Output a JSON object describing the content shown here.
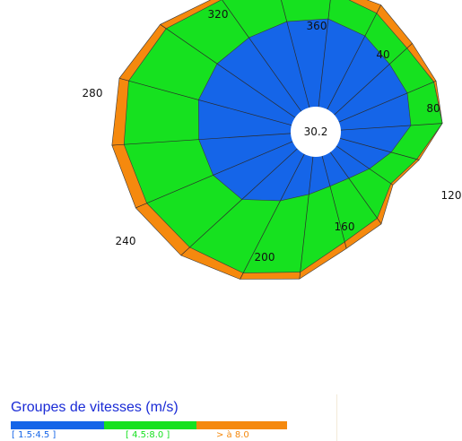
{
  "chart_data": {
    "type": "polar-stacked-area (wind rose)",
    "center_value": "30.2",
    "direction_labels": [
      "320",
      "360",
      "40",
      "80",
      "120",
      "160",
      "200",
      "240",
      "280"
    ],
    "directions": [
      0,
      20,
      40,
      60,
      80,
      100,
      120,
      140,
      160,
      180,
      200,
      220,
      240,
      260,
      280,
      300,
      320,
      340
    ],
    "series": [
      {
        "name": "1.5:4.5",
        "color": "#1565e8",
        "values": [
          3.9,
          3.9,
          3.6,
          3.2,
          3.1,
          2.9,
          2.2,
          1.7,
          1.4,
          1.4,
          1.7,
          2.3,
          3.2,
          3.6,
          3.8,
          4.0,
          4.0,
          3.9
        ]
      },
      {
        "name": "4.5:8.0",
        "color": "#16e11f",
        "values": [
          1.2,
          1.2,
          1.1,
          1.0,
          1.2,
          1.3,
          1.1,
          1.1,
          2.1,
          2.5,
          3.4,
          3.5,
          3.0,
          3.0,
          3.1,
          3.0,
          2.6,
          2.0
        ]
      },
      {
        "name": "> à 8.0",
        "color": "#f5890e",
        "values": [
          0.2,
          0.2,
          0.4,
          0.3,
          0.1,
          0.0,
          0.1,
          0.1,
          0.3,
          0.3,
          0.3,
          0.3,
          0.5,
          0.5,
          0.5,
          0.4,
          0.3,
          0.2
        ]
      }
    ],
    "legend": {
      "title": "Groupes de vitesses (m/s)",
      "placement": "bottom-left"
    }
  }
}
